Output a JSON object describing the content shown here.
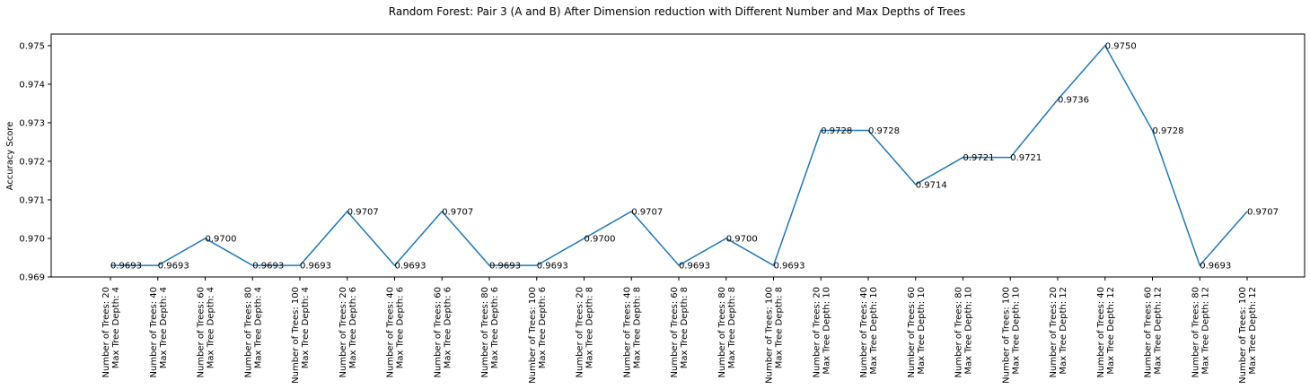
{
  "chart_data": {
    "type": "line",
    "title": "Random Forest: Pair 3 (A and B) After Dimension reduction with Different Number and Max Depths of Trees",
    "xlabel": "",
    "ylabel": "Accuracy Score",
    "ylim": [
      0.969,
      0.9753
    ],
    "yticks": [
      "0.969",
      "0.970",
      "0.971",
      "0.972",
      "0.973",
      "0.974",
      "0.975"
    ],
    "grid": false,
    "categories": [
      [
        "Number of Trees: 20",
        "Max Tree Depth: 4"
      ],
      [
        "Number of Trees: 40",
        "Max Tree Depth: 4"
      ],
      [
        "Number of Trees: 60",
        "Max Tree Depth: 4"
      ],
      [
        "Number of Trees: 80",
        "Max Tree Depth: 4"
      ],
      [
        "Number of Trees: 100",
        "Max Tree Depth: 4"
      ],
      [
        "Number of Trees: 20",
        "Max Tree Depth: 6"
      ],
      [
        "Number of Trees: 40",
        "Max Tree Depth: 6"
      ],
      [
        "Number of Trees: 60",
        "Max Tree Depth: 6"
      ],
      [
        "Number of Trees: 80",
        "Max Tree Depth: 6"
      ],
      [
        "Number of Trees: 100",
        "Max Tree Depth: 6"
      ],
      [
        "Number of Trees: 20",
        "Max Tree Depth: 8"
      ],
      [
        "Number of Trees: 40",
        "Max Tree Depth: 8"
      ],
      [
        "Number of Trees: 60",
        "Max Tree Depth: 8"
      ],
      [
        "Number of Trees: 80",
        "Max Tree Depth: 8"
      ],
      [
        "Number of Trees: 100",
        "Max Tree Depth: 8"
      ],
      [
        "Number of Trees: 20",
        "Max Tree Depth: 10"
      ],
      [
        "Number of Trees: 40",
        "Max Tree Depth: 10"
      ],
      [
        "Number of Trees: 60",
        "Max Tree Depth: 10"
      ],
      [
        "Number of Trees: 80",
        "Max Tree Depth: 10"
      ],
      [
        "Number of Trees: 100",
        "Max Tree Depth: 10"
      ],
      [
        "Number of Trees: 20",
        "Max Tree Depth: 12"
      ],
      [
        "Number of Trees: 40",
        "Max Tree Depth: 12"
      ],
      [
        "Number of Trees: 60",
        "Max Tree Depth: 12"
      ],
      [
        "Number of Trees: 80",
        "Max Tree Depth: 12"
      ],
      [
        "Number of Trees: 100",
        "Max Tree Depth: 12"
      ]
    ],
    "values": [
      0.9693,
      0.9693,
      0.97,
      0.9693,
      0.9693,
      0.9707,
      0.9693,
      0.9707,
      0.9693,
      0.9693,
      0.97,
      0.9707,
      0.9693,
      0.97,
      0.9693,
      0.9728,
      0.9728,
      0.9714,
      0.9721,
      0.9721,
      0.9736,
      0.975,
      0.9728,
      0.9693,
      0.9707
    ],
    "labels": [
      "0.9693",
      "0.9693",
      "0.9700",
      "0.9693",
      "0.9693",
      "0.9707",
      "0.9693",
      "0.9707",
      "0.9693",
      "0.9693",
      "0.9700",
      "0.9707",
      "0.9693",
      "0.9700",
      "0.9693",
      "0.9728",
      "0.9728",
      "0.9714",
      "0.9721",
      "0.9721",
      "0.9736",
      "0.9750",
      "0.9728",
      "0.9693",
      "0.9707"
    ],
    "line_color": "#1f77b4"
  }
}
